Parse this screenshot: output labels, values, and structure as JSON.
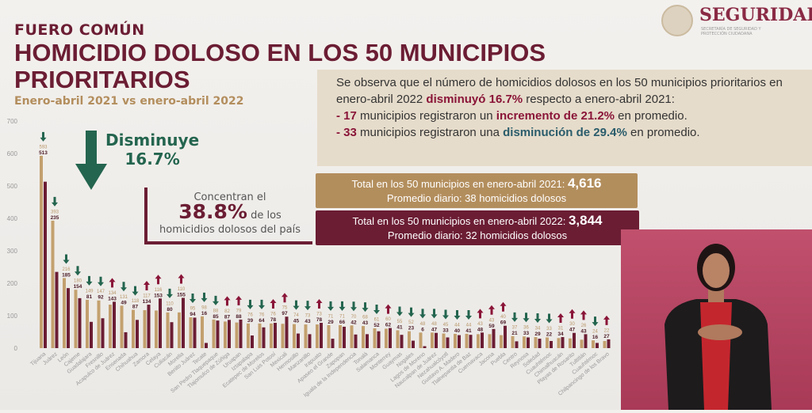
{
  "header": {
    "kicker": "FUERO COMÚN",
    "title": "HOMICIDIO DOLOSO EN LOS 50 MUNICIPIOS PRIORITARIOS",
    "subtitle": "Enero-abril 2021 vs enero-abril 2022"
  },
  "logo": {
    "brand": "SEGURIDAD",
    "sub": "SECRETARÍA DE SEGURIDAD Y PROTECCIÓN CIUDADANA"
  },
  "note": {
    "p1": "Se observa que el número de homicidios dolosos en los 50 municipios prioritarios en enero-abril 2022 ",
    "p1b": "disminuyó 16.7%",
    "p1c": " respecto a enero-abril 2021:",
    "l1a": "- 17",
    "l1b": " municipios registraron un ",
    "l1c": "incremento de 21.2%",
    "l1d": " en promedio.",
    "l2a": "- 33",
    "l2b": " municipios registraron una ",
    "l2c": "disminución de 29.4%",
    "l2d": " en promedio."
  },
  "decrease": {
    "label": "Disminuye",
    "value": "16.7%"
  },
  "concentran": {
    "pre": "Concentran el",
    "pct": "38.8%",
    "post": " de los",
    "line3": "homicidios dolosos del país"
  },
  "total2021": {
    "label": "Total en los 50 municipios en enero-abril 2021: ",
    "value": "4,616",
    "avg": "Promedio diario: 38 homicidios dolosos"
  },
  "total2022": {
    "label": "Total en los 50 municipios en enero-abril 2022: ",
    "value": "3,844",
    "avg": "Promedio diario: 32 homicidios dolosos"
  },
  "colors": {
    "y2021": "#c3a06e",
    "y2022": "#6b1d34",
    "down": "#24654f",
    "up": "#8a1538"
  },
  "chart_data": {
    "type": "bar",
    "title": "Homicidio doloso en los 50 municipios prioritarios",
    "ylim": [
      0,
      700
    ],
    "yticks": [
      0,
      100,
      200,
      300,
      400,
      500,
      600,
      700
    ],
    "categories": [
      "Tijuana",
      "Juárez",
      "León",
      "Cajeme",
      "Guadalajara",
      "Fresnillo",
      "Acapulco de Juárez",
      "Ensenada",
      "Chihuahua",
      "Zamora",
      "Celaya",
      "Culiacán",
      "Morelia",
      "Benito Juárez",
      "Tecate",
      "San Pedro Tlaquepaque",
      "Tlajomulco de Zúñiga",
      "Uruapan",
      "Iztapalapa",
      "Ecatepec de Morelos",
      "San Luis Potosí",
      "Mexicali",
      "Hermosillo",
      "Manzanillo",
      "Irapuato",
      "Apaseo el Grande",
      "Zapopan",
      "Iguala de la Independencia",
      "Tonalá",
      "Salamanca",
      "Monterrey",
      "Guaymas",
      "Nogales",
      "Lagos de Moreno",
      "Naucalpan de Juárez",
      "Nezahualcóyotl",
      "Gustavo A. Madero",
      "Tlalnepantla de Baz",
      "Cuernavaca",
      "Jacona",
      "Puebla",
      "Centro",
      "Reynosa",
      "Soledad",
      "Cuauhtémoc",
      "Chimalhuacán",
      "Playas de Rosarito",
      "Tultitlán",
      "Cuauhtémoc",
      "Chilpancingo de los Bravo"
    ],
    "series": [
      {
        "name": "Enero-abril 2021",
        "values": [
          593,
          393,
          216,
          180,
          149,
          147,
          134,
          131,
          118,
          117,
          116,
          110,
          110,
          95,
          98,
          88,
          82,
          79,
          76,
          76,
          76,
          75,
          74,
          73,
          73,
          71,
          71,
          70,
          68,
          61,
          60,
          55,
          52,
          48,
          48,
          45,
          44,
          44,
          43,
          43,
          40,
          37,
          36,
          34,
          33,
          31,
          30,
          26,
          24,
          22
        ]
      },
      {
        "name": "Enero-abril 2022",
        "values": [
          513,
          235,
          185,
          154,
          81,
          92,
          143,
          49,
          87,
          134,
          153,
          80,
          155,
          94,
          16,
          85,
          87,
          88,
          39,
          64,
          78,
          97,
          45,
          43,
          78,
          29,
          66,
          42,
          43,
          52,
          62,
          41,
          23,
          6,
          47,
          33,
          40,
          41,
          48,
          59,
          69,
          21,
          33,
          29,
          22,
          34,
          47,
          43,
          16,
          27
        ]
      }
    ]
  }
}
